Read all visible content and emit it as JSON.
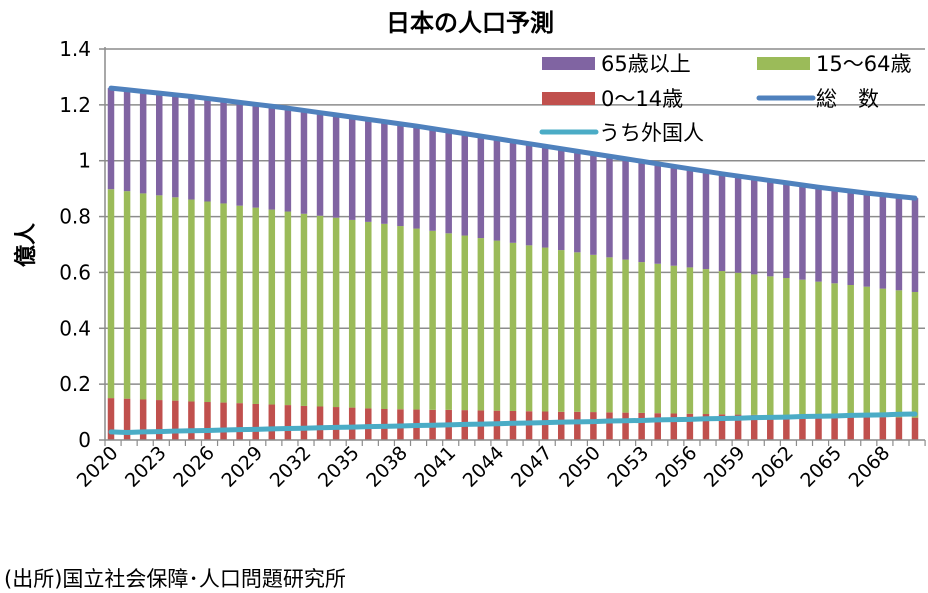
{
  "chart_data": {
    "type": "bar",
    "title": "日本の人口予測",
    "xlabel": "",
    "ylabel": "億人",
    "ylim": [
      0,
      1.4
    ],
    "yticks": [
      "0",
      "0.2",
      "0.4",
      "0.6",
      "0.8",
      "1",
      "1.2",
      "1.4"
    ],
    "ytick_values": [
      0,
      0.2,
      0.4,
      0.6,
      0.8,
      1.0,
      1.2,
      1.4
    ],
    "grid": true,
    "legend_position": "top-right",
    "x_start": 2020,
    "x_label_every": 3,
    "xticks": [
      "2020",
      "2023",
      "2026",
      "2029",
      "2032",
      "2035",
      "2038",
      "2041",
      "2044",
      "2047",
      "2050",
      "2053",
      "2056",
      "2059",
      "2062",
      "2065",
      "2068"
    ],
    "stacked_series": [
      {
        "name": "0〜14歳",
        "color": "#C0504D",
        "values": [
          0.15,
          0.148,
          0.145,
          0.143,
          0.141,
          0.138,
          0.136,
          0.134,
          0.132,
          0.129,
          0.127,
          0.125,
          0.122,
          0.12,
          0.118,
          0.116,
          0.113,
          0.111,
          0.11,
          0.109,
          0.108,
          0.108,
          0.107,
          0.106,
          0.105,
          0.104,
          0.103,
          0.102,
          0.101,
          0.101,
          0.1,
          0.099,
          0.098,
          0.097,
          0.096,
          0.095,
          0.094,
          0.093,
          0.092,
          0.091,
          0.09,
          0.089,
          0.088,
          0.087,
          0.086,
          0.085,
          0.084,
          0.083,
          0.082,
          0.081,
          0.08
        ]
      },
      {
        "name": "15〜64歳",
        "color": "#9BBB59",
        "values": [
          0.748,
          0.743,
          0.738,
          0.733,
          0.728,
          0.723,
          0.718,
          0.713,
          0.707,
          0.703,
          0.698,
          0.693,
          0.688,
          0.683,
          0.678,
          0.672,
          0.668,
          0.663,
          0.656,
          0.648,
          0.641,
          0.632,
          0.625,
          0.617,
          0.609,
          0.602,
          0.594,
          0.587,
          0.579,
          0.571,
          0.563,
          0.555,
          0.548,
          0.54,
          0.535,
          0.529,
          0.524,
          0.519,
          0.513,
          0.508,
          0.503,
          0.497,
          0.492,
          0.487,
          0.481,
          0.476,
          0.471,
          0.466,
          0.46,
          0.455,
          0.45
        ]
      },
      {
        "name": "65歳以上",
        "color": "#8064A2",
        "values": [
          0.362,
          0.363,
          0.365,
          0.366,
          0.367,
          0.369,
          0.369,
          0.369,
          0.37,
          0.37,
          0.37,
          0.37,
          0.37,
          0.369,
          0.368,
          0.368,
          0.367,
          0.366,
          0.366,
          0.367,
          0.366,
          0.366,
          0.365,
          0.365,
          0.365,
          0.364,
          0.364,
          0.363,
          0.363,
          0.362,
          0.362,
          0.362,
          0.361,
          0.361,
          0.358,
          0.356,
          0.353,
          0.35,
          0.348,
          0.346,
          0.344,
          0.343,
          0.341,
          0.339,
          0.338,
          0.337,
          0.336,
          0.335,
          0.336,
          0.336,
          0.336
        ]
      }
    ],
    "line_series": [
      {
        "name": "総　数",
        "color": "#4F81BD",
        "values": [
          1.26,
          1.254,
          1.248,
          1.242,
          1.236,
          1.23,
          1.223,
          1.216,
          1.209,
          1.202,
          1.195,
          1.188,
          1.18,
          1.172,
          1.164,
          1.156,
          1.148,
          1.14,
          1.132,
          1.124,
          1.115,
          1.106,
          1.097,
          1.088,
          1.079,
          1.07,
          1.061,
          1.052,
          1.043,
          1.034,
          1.025,
          1.016,
          1.007,
          0.998,
          0.989,
          0.98,
          0.971,
          0.962,
          0.953,
          0.945,
          0.937,
          0.929,
          0.921,
          0.913,
          0.905,
          0.898,
          0.891,
          0.884,
          0.878,
          0.872,
          0.866
        ]
      },
      {
        "name": "うち外国人",
        "color": "#4BACC6",
        "values": [
          0.029,
          0.027,
          0.029,
          0.03,
          0.032,
          0.033,
          0.034,
          0.036,
          0.037,
          0.038,
          0.04,
          0.041,
          0.042,
          0.044,
          0.045,
          0.046,
          0.048,
          0.049,
          0.05,
          0.052,
          0.053,
          0.054,
          0.056,
          0.057,
          0.058,
          0.06,
          0.061,
          0.062,
          0.064,
          0.065,
          0.066,
          0.068,
          0.069,
          0.07,
          0.072,
          0.073,
          0.074,
          0.076,
          0.077,
          0.078,
          0.08,
          0.081,
          0.082,
          0.084,
          0.085,
          0.086,
          0.088,
          0.089,
          0.09,
          0.092,
          0.093
        ]
      }
    ],
    "legend": [
      {
        "label": "65歳以上",
        "kind": "bar",
        "color": "#8064A2"
      },
      {
        "label": "15〜64歳",
        "kind": "bar",
        "color": "#9BBB59"
      },
      {
        "label": "0〜14歳",
        "kind": "bar",
        "color": "#C0504D"
      },
      {
        "label": "総　数",
        "kind": "line",
        "color": "#4F81BD"
      },
      {
        "label": "うち外国人",
        "kind": "line",
        "color": "#4BACC6"
      }
    ]
  },
  "footer": {
    "source": "(出所)国立社会保障･人口問題研究所"
  }
}
